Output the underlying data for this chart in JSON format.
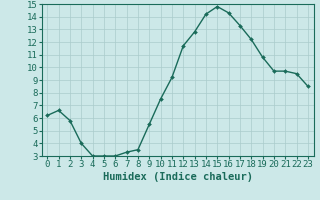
{
  "x": [
    0,
    1,
    2,
    3,
    4,
    5,
    6,
    7,
    8,
    9,
    10,
    11,
    12,
    13,
    14,
    15,
    16,
    17,
    18,
    19,
    20,
    21,
    22,
    23
  ],
  "y": [
    6.2,
    6.6,
    5.8,
    4.0,
    3.0,
    3.0,
    3.0,
    3.3,
    3.5,
    5.5,
    7.5,
    9.2,
    11.7,
    12.8,
    14.2,
    14.8,
    14.3,
    13.3,
    12.2,
    10.8,
    9.7,
    9.7,
    9.5,
    8.5
  ],
  "line_color": "#1a6b5a",
  "marker": "D",
  "marker_size": 2.0,
  "bg_color": "#cce8e8",
  "grid_color": "#aacccc",
  "xlabel": "Humidex (Indice chaleur)",
  "xlim": [
    -0.5,
    23.5
  ],
  "ylim": [
    3,
    15
  ],
  "yticks": [
    3,
    4,
    5,
    6,
    7,
    8,
    9,
    10,
    11,
    12,
    13,
    14,
    15
  ],
  "xticks": [
    0,
    1,
    2,
    3,
    4,
    5,
    6,
    7,
    8,
    9,
    10,
    11,
    12,
    13,
    14,
    15,
    16,
    17,
    18,
    19,
    20,
    21,
    22,
    23
  ],
  "xlabel_fontsize": 7.5,
  "tick_fontsize": 6.5,
  "axis_color": "#1a6b5a",
  "linewidth": 1.0
}
